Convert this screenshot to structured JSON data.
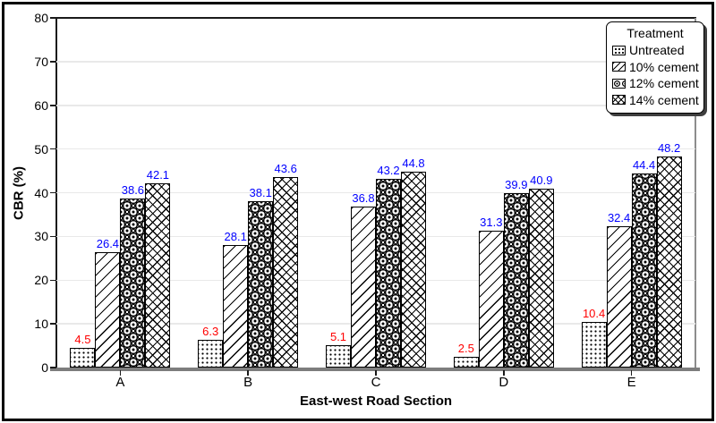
{
  "legend": {
    "title": "Treatment"
  },
  "chart_data": {
    "type": "bar",
    "title": "",
    "xlabel": "East-west Road Section",
    "ylabel": "CBR (%)",
    "ylim": [
      0,
      80
    ],
    "yticks": [
      0,
      10,
      20,
      30,
      40,
      50,
      60,
      70,
      80
    ],
    "grid": true,
    "legend_position": "top-right",
    "categories": [
      "A",
      "B",
      "C",
      "D",
      "E"
    ],
    "series": [
      {
        "name": "Untreated",
        "pattern": "dots",
        "label_color": "#ff0000",
        "values": [
          4.5,
          6.3,
          5.1,
          2.5,
          10.4
        ]
      },
      {
        "name": "10% cement",
        "pattern": "diagonal",
        "label_color": "#0000ff",
        "values": [
          26.4,
          28.1,
          36.8,
          31.3,
          32.4
        ]
      },
      {
        "name": "12% cement",
        "pattern": "circles",
        "label_color": "#0000ff",
        "values": [
          38.6,
          38.1,
          43.2,
          39.9,
          44.4
        ]
      },
      {
        "name": "14% cement",
        "pattern": "crosshatch",
        "label_color": "#0000ff",
        "values": [
          42.1,
          43.6,
          44.8,
          40.9,
          48.2
        ]
      }
    ],
    "colors": {
      "untreated_label": "#ff0000",
      "cement_label": "#0000ff",
      "gridline": "#e9e9e9",
      "axis_baseline": "#7d7d7d"
    }
  }
}
